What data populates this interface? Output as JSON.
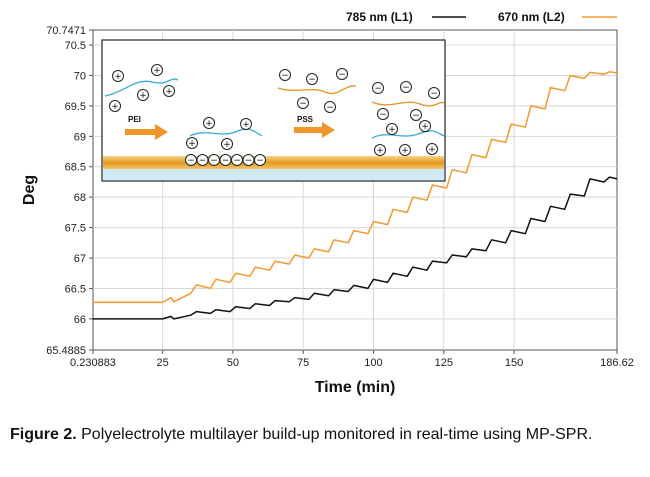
{
  "chart_data": {
    "type": "line",
    "xlabel": "Time (min)",
    "ylabel": "Deg",
    "xlim": [
      0.230883,
      186.62
    ],
    "ylim": [
      65.4885,
      70.7471
    ],
    "x_ticks": [
      "0.230883",
      "25",
      "50",
      "75",
      "100",
      "125",
      "150",
      "186.62"
    ],
    "y_ticks": [
      "65.4885",
      "66",
      "66.5",
      "67",
      "67.5",
      "68",
      "68.5",
      "69",
      "69.5",
      "70",
      "70.5",
      "70.7471"
    ],
    "grid": true,
    "legend_position": "top-right",
    "series": [
      {
        "name": "785 nm (L1)",
        "color": "#111111",
        "x": [
          0,
          25,
          28,
          29,
          35,
          37,
          42,
          44,
          49,
          51,
          56,
          58,
          63,
          65,
          70,
          72,
          77,
          79,
          84,
          86,
          91,
          93,
          98,
          100,
          105,
          107,
          112,
          114,
          119,
          121,
          126,
          128,
          133,
          135,
          140,
          142,
          147,
          149,
          154,
          156,
          161,
          163,
          168,
          170,
          175,
          177,
          182,
          184,
          186.62
        ],
        "values": [
          66.0,
          66.0,
          66.04,
          66.0,
          66.06,
          66.12,
          66.09,
          66.15,
          66.12,
          66.2,
          66.17,
          66.25,
          66.22,
          66.3,
          66.28,
          66.35,
          66.32,
          66.42,
          66.38,
          66.48,
          66.45,
          66.55,
          66.5,
          66.65,
          66.6,
          66.75,
          66.7,
          66.85,
          66.8,
          66.95,
          66.92,
          67.05,
          67.02,
          67.15,
          67.12,
          67.3,
          67.25,
          67.45,
          67.4,
          67.65,
          67.6,
          67.85,
          67.8,
          68.05,
          68.02,
          68.3,
          68.25,
          68.33,
          68.3
        ]
      },
      {
        "name": "670 nm (L2)",
        "color": "#f29a30",
        "x": [
          0,
          25,
          28,
          29,
          35,
          37,
          42,
          44,
          49,
          51,
          56,
          58,
          63,
          65,
          70,
          72,
          77,
          79,
          84,
          86,
          91,
          93,
          98,
          100,
          105,
          107,
          112,
          114,
          119,
          121,
          126,
          128,
          133,
          135,
          140,
          142,
          147,
          149,
          154,
          156,
          161,
          163,
          168,
          170,
          175,
          177,
          182,
          184,
          186.62
        ],
        "values": [
          66.27,
          66.27,
          66.35,
          66.28,
          66.42,
          66.56,
          66.5,
          66.65,
          66.6,
          66.75,
          66.7,
          66.85,
          66.8,
          66.95,
          66.9,
          67.05,
          67.0,
          67.15,
          67.1,
          67.3,
          67.25,
          67.45,
          67.4,
          67.6,
          67.55,
          67.8,
          67.75,
          68.0,
          67.95,
          68.2,
          68.15,
          68.45,
          68.4,
          68.7,
          68.65,
          68.95,
          68.9,
          69.2,
          69.15,
          69.5,
          69.45,
          69.8,
          69.75,
          70.0,
          69.95,
          70.05,
          70.02,
          70.06,
          70.04
        ]
      }
    ],
    "inset": {
      "label_left": "PEI",
      "label_right": "PSS",
      "ion_positive": "+",
      "ion_negative": "−"
    }
  },
  "caption": {
    "lead": "Figure 2.",
    "text": " Polyelectrolyte multilayer build-up monitored in real-time using MP-SPR."
  }
}
